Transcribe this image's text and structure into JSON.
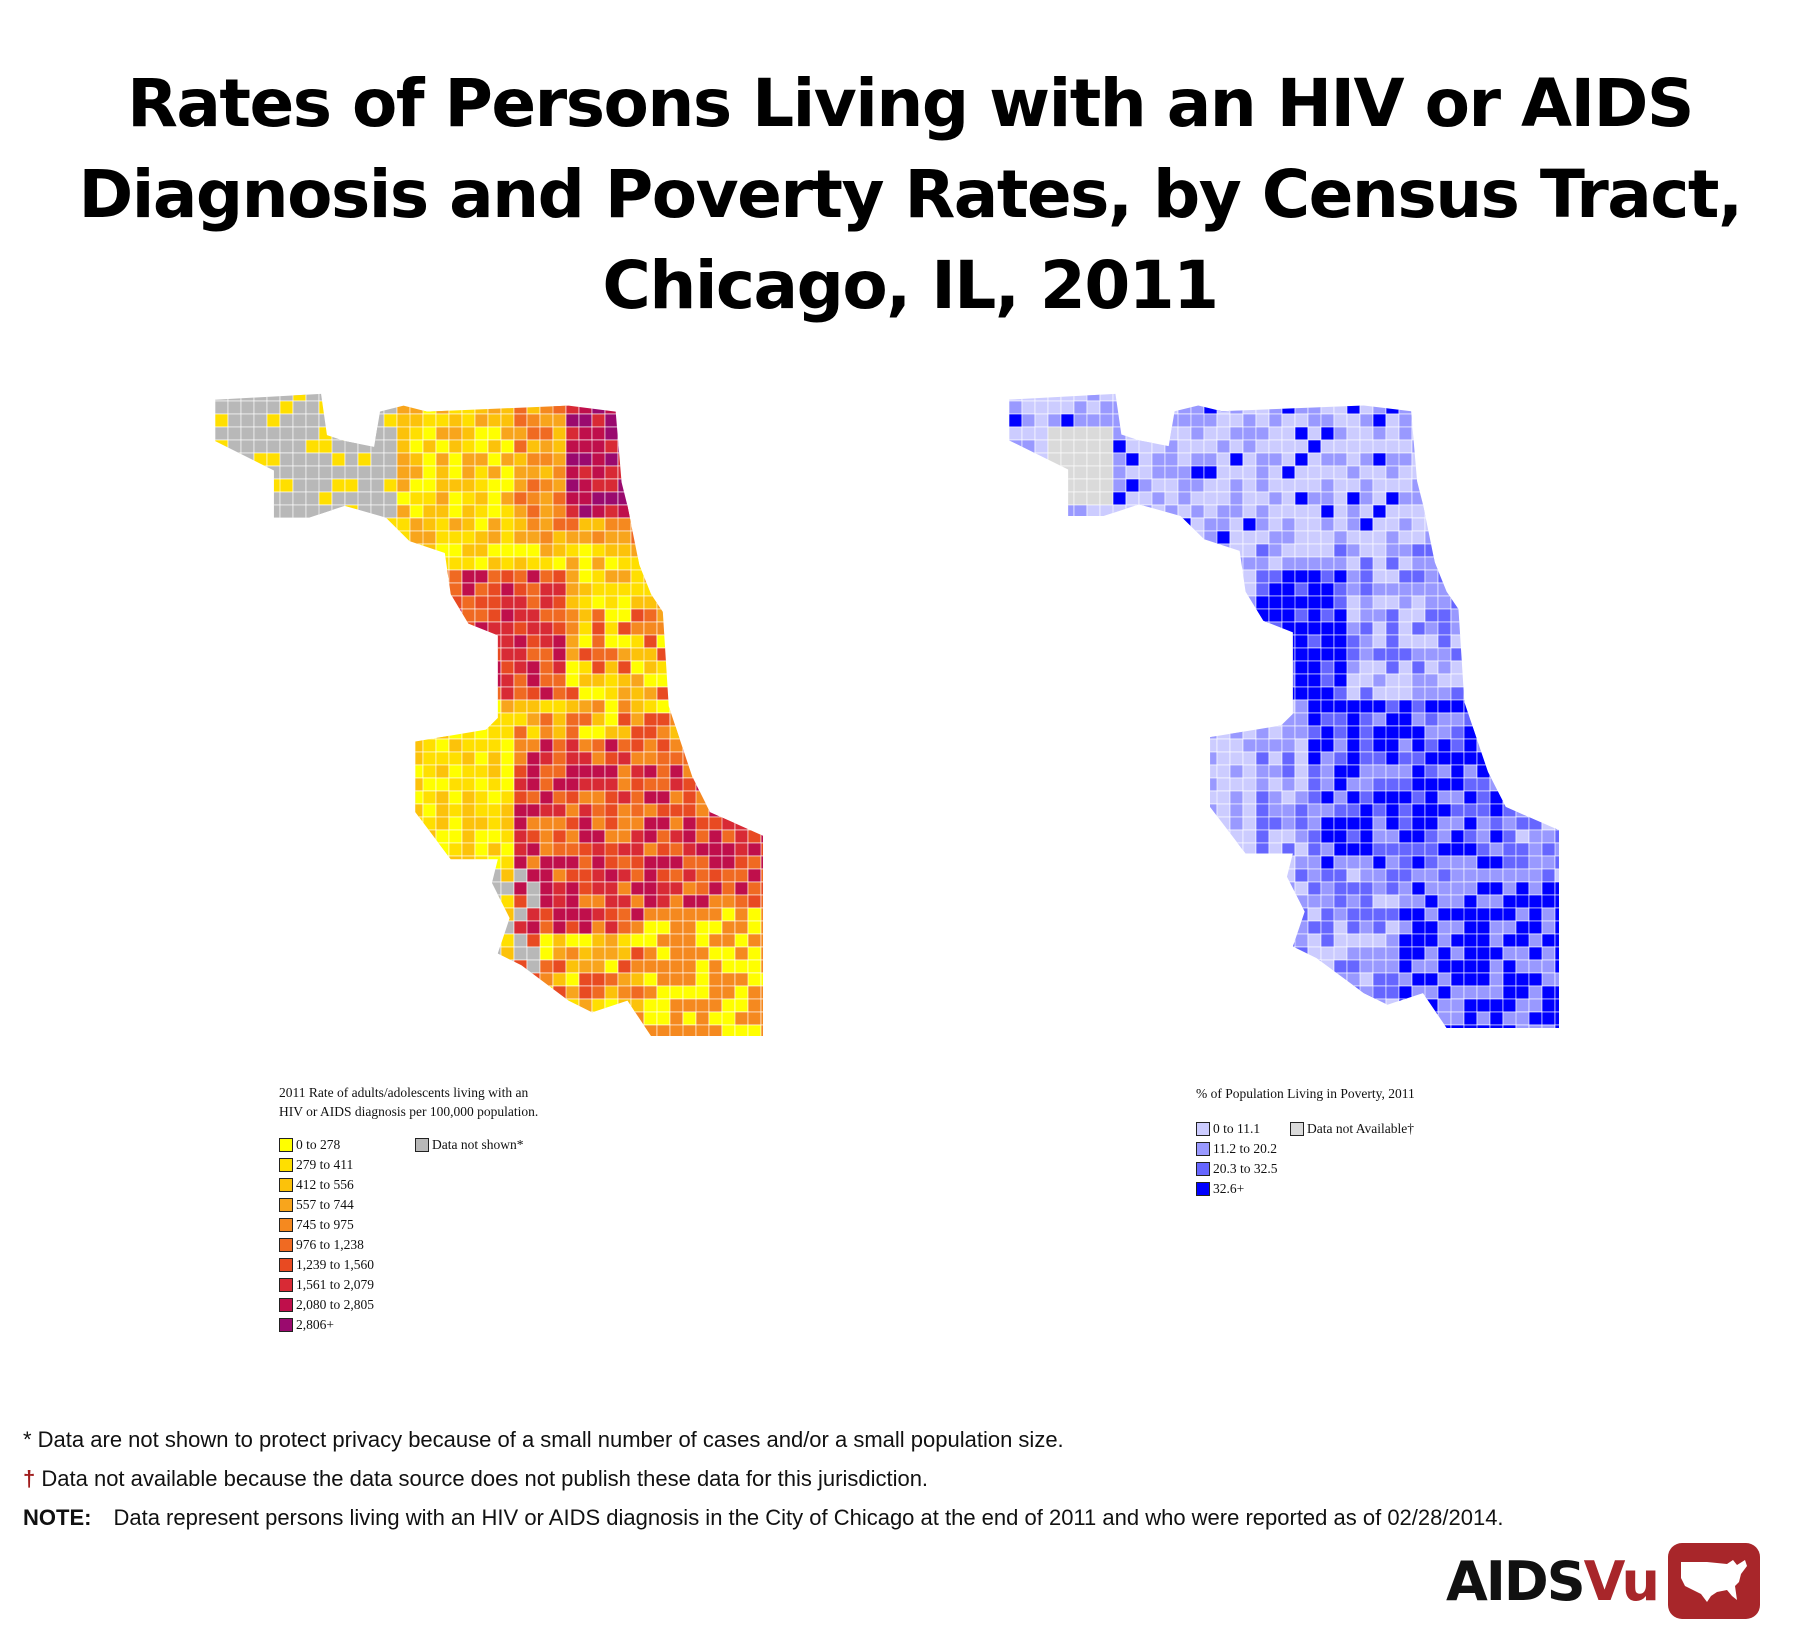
{
  "title": {
    "lines": [
      "Rates of Persons Living with an HIV or AIDS",
      "Diagnosis and Poverty Rates, by Census Tract,",
      "Chicago, IL, 2011"
    ]
  },
  "hiv_map": {
    "legend_title_1": "2011 Rate of adults/adolescents living with an",
    "legend_title_2": "HIV or AIDS diagnosis per 100,000 population.",
    "classes": [
      {
        "label": "0 to 278",
        "color": "#ffff00"
      },
      {
        "label": "279 to 411",
        "color": "#ffdf00"
      },
      {
        "label": "412 to 556",
        "color": "#fcc20a"
      },
      {
        "label": "557 to 744",
        "color": "#f8a51c"
      },
      {
        "label": "745 to 975",
        "color": "#f5891f"
      },
      {
        "label": "976 to 1,238",
        "color": "#f06a22"
      },
      {
        "label": "1,239 to 1,560",
        "color": "#e84a22"
      },
      {
        "label": "1,561 to 2,079",
        "color": "#d82a35"
      },
      {
        "label": "2,080 to 2,805",
        "color": "#bf0f4b"
      },
      {
        "label": "2,806+",
        "color": "#9a0a6e"
      }
    ],
    "no_data": {
      "label": "Data not shown*",
      "color": "#b8b8b8"
    }
  },
  "poverty_map": {
    "legend_title": "% of Population Living in Poverty, 2011",
    "classes": [
      {
        "label": "0 to 11.1",
        "color": "#ccccff"
      },
      {
        "label": "11.2 to 20.2",
        "color": "#9999ff"
      },
      {
        "label": "20.3 to 32.5",
        "color": "#6666ff"
      },
      {
        "label": "32.6+",
        "color": "#0000ff"
      }
    ],
    "no_data": {
      "label": "Data not Available†",
      "color": "#dadada"
    }
  },
  "footnotes": {
    "star": "* Data are not shown to protect privacy because of a small number of cases and/or a small population size.",
    "dagger_symbol": "†",
    "dagger": "Data not available because the data source does not publish these data for this jurisdiction.",
    "note_label": "NOTE:",
    "note": "Data represent persons living with an HIV or AIDS diagnosis in the City of Chicago at the end of 2011 and who were reported as of 02/28/2014."
  },
  "logo": {
    "part1": "AIDS",
    "part2": "Vu",
    "icon": "us-map-icon",
    "color": "#a8262a"
  }
}
